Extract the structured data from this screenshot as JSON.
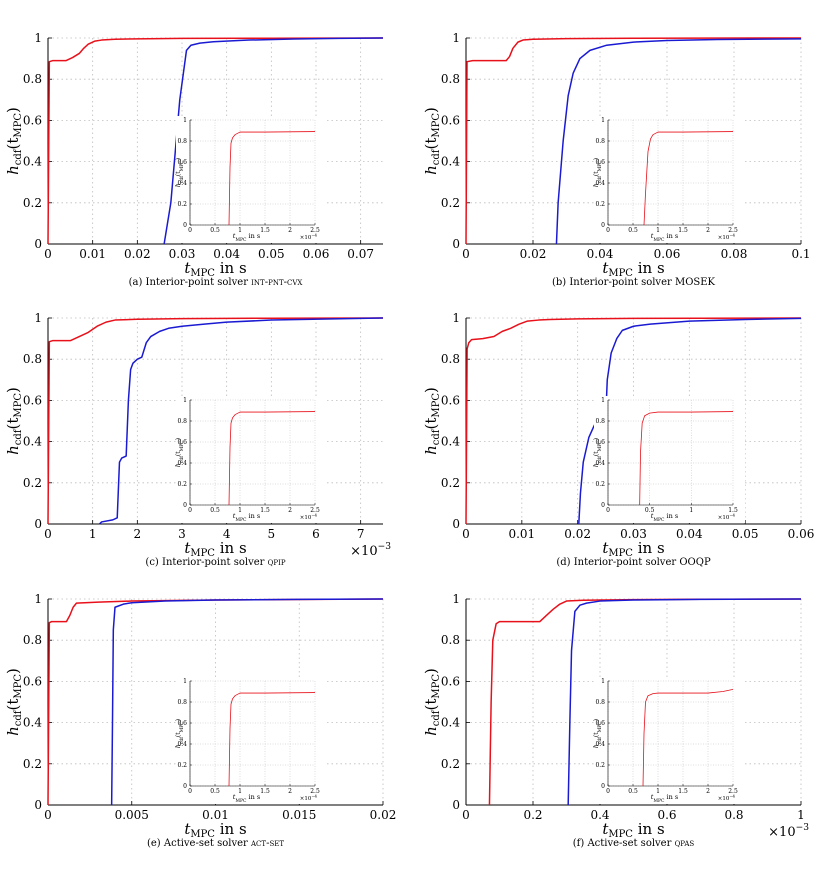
{
  "colors": {
    "red": "#e8101a",
    "blue": "#1a1ad2",
    "grid": "#bdbdbd"
  },
  "labels": {
    "ylabel_main": "h",
    "ylabel_sub": "cdf",
    "ylabel_arg": "(t",
    "ylabel_argsub": "MPC",
    "ylabel_close": ")",
    "xlabel_main": "t",
    "xlabel_sub": "MPC",
    "xlabel_unit": " in s",
    "exp_base": "×10",
    "exp_neg3": "−3",
    "exp_neg4": "−4"
  },
  "chart_data": [
    {
      "id": "a",
      "type": "line",
      "caption_prefix": "(a) Interior-point solver ",
      "caption_name": "int-pnt-cvx",
      "caption_sc": true,
      "xlim": [
        0,
        0.075
      ],
      "ylim": [
        0,
        1
      ],
      "xticks": [
        0,
        0.01,
        0.02,
        0.03,
        0.04,
        0.05,
        0.06,
        0.07
      ],
      "xticklabels": [
        "0",
        "0.01",
        "0.02",
        "0.03",
        "0.04",
        "0.05",
        "0.06",
        "0.07"
      ],
      "yticks": [
        0,
        0.2,
        0.4,
        0.6,
        0.8,
        1
      ],
      "yticklabels": [
        "0",
        "0.2",
        "0.4",
        "0.6",
        "0.8",
        "1"
      ],
      "exponent": "",
      "series": [
        {
          "color": "red",
          "x": [
            0,
            0.0003,
            0.001,
            0.004,
            0.0055,
            0.007,
            0.008,
            0.009,
            0.0105,
            0.012,
            0.015,
            0.02,
            0.03,
            0.05,
            0.075
          ],
          "y": [
            0,
            0.885,
            0.89,
            0.89,
            0.905,
            0.925,
            0.95,
            0.97,
            0.985,
            0.99,
            0.994,
            0.996,
            0.998,
            0.999,
            1
          ]
        },
        {
          "color": "blue",
          "x": [
            0.026,
            0.0275,
            0.0285,
            0.0295,
            0.031,
            0.032,
            0.034,
            0.037,
            0.045,
            0.055,
            0.065,
            0.075
          ],
          "y": [
            0,
            0.2,
            0.45,
            0.7,
            0.94,
            0.965,
            0.975,
            0.982,
            0.99,
            0.995,
            0.998,
            1
          ]
        }
      ],
      "inset": {
        "xlim": [
          0,
          2.5
        ],
        "ylim": [
          0,
          1
        ],
        "xticks": [
          0,
          0.5,
          1,
          1.5,
          2,
          2.5
        ],
        "xticklabels": [
          "0",
          "0.5",
          "1",
          "1.5",
          "2",
          "2.5"
        ],
        "yticks": [
          0,
          0.2,
          0.4,
          0.6,
          0.8,
          1
        ],
        "yticklabels": [
          "0",
          "0.2",
          "0.4",
          "0.6",
          "0.8",
          "1"
        ],
        "exponent": "−4",
        "series": [
          {
            "color": "red",
            "x": [
              0.78,
              0.8,
              0.82,
              0.85,
              0.9,
              1.0,
              1.5,
              2.5
            ],
            "y": [
              0,
              0.55,
              0.78,
              0.83,
              0.86,
              0.885,
              0.885,
              0.89
            ]
          }
        ]
      }
    },
    {
      "id": "b",
      "type": "line",
      "caption_prefix": "(b) Interior-point solver ",
      "caption_name": "MOSEK",
      "caption_sc": false,
      "xlim": [
        0,
        0.1
      ],
      "ylim": [
        0,
        1
      ],
      "xticks": [
        0,
        0.02,
        0.04,
        0.06,
        0.08,
        0.1
      ],
      "xticklabels": [
        "0",
        "0.02",
        "0.04",
        "0.06",
        "0.08",
        "0.1"
      ],
      "yticks": [
        0,
        0.2,
        0.4,
        0.6,
        0.8,
        1
      ],
      "yticklabels": [
        "0",
        "0.2",
        "0.4",
        "0.6",
        "0.8",
        "1"
      ],
      "exponent": "",
      "series": [
        {
          "color": "red",
          "x": [
            0,
            0.0003,
            0.002,
            0.012,
            0.013,
            0.014,
            0.0155,
            0.017,
            0.02,
            0.03,
            0.05,
            0.1
          ],
          "y": [
            0,
            0.885,
            0.89,
            0.89,
            0.91,
            0.95,
            0.98,
            0.99,
            0.994,
            0.997,
            0.999,
            1
          ]
        },
        {
          "color": "blue",
          "x": [
            0.027,
            0.0275,
            0.029,
            0.0305,
            0.032,
            0.034,
            0.037,
            0.042,
            0.05,
            0.06,
            0.075,
            0.1
          ],
          "y": [
            0,
            0.2,
            0.5,
            0.72,
            0.83,
            0.9,
            0.94,
            0.965,
            0.98,
            0.988,
            0.993,
            0.996
          ]
        }
      ],
      "inset": {
        "xlim": [
          0,
          2.5
        ],
        "ylim": [
          0,
          1
        ],
        "xticks": [
          0,
          0.5,
          1,
          1.5,
          2,
          2.5
        ],
        "xticklabels": [
          "0",
          "0.5",
          "1",
          "1.5",
          "2",
          "2.5"
        ],
        "yticks": [
          0,
          0.2,
          0.4,
          0.6,
          0.8,
          1
        ],
        "yticklabels": [
          "0",
          "0.2",
          "0.4",
          "0.6",
          "0.8",
          "1"
        ],
        "exponent": "−4",
        "series": [
          {
            "color": "red",
            "x": [
              0.72,
              0.75,
              0.8,
              0.85,
              0.9,
              1.0,
              1.5,
              2.5
            ],
            "y": [
              0,
              0.3,
              0.7,
              0.82,
              0.86,
              0.885,
              0.885,
              0.89
            ]
          }
        ]
      }
    },
    {
      "id": "c",
      "type": "line",
      "caption_prefix": "(c) Interior-point solver ",
      "caption_name": "qpip",
      "caption_sc": true,
      "xlim": [
        0,
        7.5
      ],
      "ylim": [
        0,
        1
      ],
      "xticks": [
        0,
        1,
        2,
        3,
        4,
        5,
        6,
        7
      ],
      "xticklabels": [
        "0",
        "1",
        "2",
        "3",
        "4",
        "5",
        "6",
        "7"
      ],
      "yticks": [
        0,
        0.2,
        0.4,
        0.6,
        0.8,
        1
      ],
      "yticklabels": [
        "0",
        "0.2",
        "0.4",
        "0.6",
        "0.8",
        "1"
      ],
      "exponent": "−3",
      "series": [
        {
          "color": "red",
          "x": [
            0,
            0.03,
            0.1,
            0.5,
            0.7,
            0.9,
            1.1,
            1.3,
            1.5,
            2.0,
            3.0,
            5.0,
            7.5
          ],
          "y": [
            0,
            0.885,
            0.89,
            0.89,
            0.91,
            0.93,
            0.96,
            0.98,
            0.99,
            0.994,
            0.997,
            0.999,
            1
          ]
        },
        {
          "color": "blue",
          "x": [
            1.15,
            1.2,
            1.45,
            1.55,
            1.6,
            1.65,
            1.75,
            1.8,
            1.85,
            1.9,
            2.0,
            2.1,
            2.2,
            2.3,
            2.5,
            2.7,
            3.0,
            3.5,
            4.0,
            5.0,
            7.5
          ],
          "y": [
            0,
            0.01,
            0.02,
            0.03,
            0.3,
            0.32,
            0.33,
            0.6,
            0.75,
            0.78,
            0.8,
            0.81,
            0.88,
            0.91,
            0.935,
            0.95,
            0.96,
            0.97,
            0.98,
            0.99,
            1
          ]
        }
      ],
      "inset": {
        "xlim": [
          0,
          2.5
        ],
        "ylim": [
          0,
          1
        ],
        "xticks": [
          0,
          0.5,
          1,
          1.5,
          2,
          2.5
        ],
        "xticklabels": [
          "0",
          "0.5",
          "1",
          "1.5",
          "2",
          "2.5"
        ],
        "yticks": [
          0,
          0.2,
          0.4,
          0.6,
          0.8,
          1
        ],
        "yticklabels": [
          "0",
          "0.2",
          "0.4",
          "0.6",
          "0.8",
          "1"
        ],
        "exponent": "−4",
        "series": [
          {
            "color": "red",
            "x": [
              0.78,
              0.8,
              0.82,
              0.85,
              0.9,
              1.0,
              1.5,
              2.5
            ],
            "y": [
              0,
              0.55,
              0.78,
              0.83,
              0.86,
              0.885,
              0.885,
              0.89
            ]
          }
        ]
      }
    },
    {
      "id": "d",
      "type": "line",
      "caption_prefix": "(d) Interior-point solver ",
      "caption_name": "OOQP",
      "caption_sc": false,
      "xlim": [
        0,
        0.06
      ],
      "ylim": [
        0,
        1
      ],
      "xticks": [
        0,
        0.01,
        0.02,
        0.03,
        0.04,
        0.05,
        0.06
      ],
      "xticklabels": [
        "0",
        "0.01",
        "0.02",
        "0.03",
        "0.04",
        "0.05",
        "0.06"
      ],
      "yticks": [
        0,
        0.2,
        0.4,
        0.6,
        0.8,
        1
      ],
      "yticklabels": [
        "0",
        "0.2",
        "0.4",
        "0.6",
        "0.8",
        "1"
      ],
      "exponent": "",
      "series": [
        {
          "color": "red",
          "x": [
            0,
            0.0002,
            0.0005,
            0.001,
            0.003,
            0.005,
            0.0065,
            0.008,
            0.0095,
            0.011,
            0.013,
            0.015,
            0.02,
            0.03,
            0.06
          ],
          "y": [
            0,
            0.85,
            0.88,
            0.895,
            0.9,
            0.91,
            0.935,
            0.95,
            0.97,
            0.985,
            0.99,
            0.993,
            0.996,
            0.998,
            1
          ]
        },
        {
          "color": "blue",
          "x": [
            0.0202,
            0.0205,
            0.021,
            0.022,
            0.023,
            0.024,
            0.025,
            0.0253,
            0.026,
            0.027,
            0.028,
            0.03,
            0.033,
            0.04,
            0.05,
            0.06
          ],
          "y": [
            0,
            0.15,
            0.3,
            0.42,
            0.48,
            0.49,
            0.5,
            0.7,
            0.83,
            0.9,
            0.94,
            0.96,
            0.97,
            0.985,
            0.993,
            0.998
          ]
        }
      ],
      "inset": {
        "xlim": [
          0,
          1.5
        ],
        "ylim": [
          0,
          1
        ],
        "xticks": [
          0,
          0.5,
          1,
          1.5
        ],
        "xticklabels": [
          "0",
          "0.5",
          "1",
          "1.5"
        ],
        "yticks": [
          0,
          0.2,
          0.4,
          0.6,
          0.8,
          1
        ],
        "yticklabels": [
          "0",
          "0.2",
          "0.4",
          "0.6",
          "0.8",
          "1"
        ],
        "exponent": "−4",
        "series": [
          {
            "color": "red",
            "x": [
              0.38,
              0.39,
              0.41,
              0.44,
              0.5,
              0.6,
              1.0,
              1.5
            ],
            "y": [
              0,
              0.5,
              0.78,
              0.85,
              0.875,
              0.885,
              0.885,
              0.89
            ]
          }
        ]
      }
    },
    {
      "id": "e",
      "type": "line",
      "caption_prefix": "(e) Active-set solver ",
      "caption_name": "act-set",
      "caption_sc": true,
      "xlim": [
        0,
        0.02
      ],
      "ylim": [
        0,
        1
      ],
      "xticks": [
        0,
        0.005,
        0.01,
        0.015,
        0.02
      ],
      "xticklabels": [
        "0",
        "0.005",
        "0.01",
        "0.015",
        "0.02"
      ],
      "yticks": [
        0,
        0.2,
        0.4,
        0.6,
        0.8,
        1
      ],
      "yticklabels": [
        "0",
        "0.2",
        "0.4",
        "0.6",
        "0.8",
        "1"
      ],
      "exponent": "",
      "series": [
        {
          "color": "red",
          "x": [
            0,
            8e-05,
            0.0002,
            0.0011,
            0.0013,
            0.0015,
            0.0017,
            0.003,
            0.005,
            0.01,
            0.02
          ],
          "y": [
            0,
            0.885,
            0.89,
            0.89,
            0.92,
            0.96,
            0.98,
            0.985,
            0.99,
            0.995,
            1
          ]
        },
        {
          "color": "blue",
          "x": [
            0.0038,
            0.00385,
            0.0039,
            0.004,
            0.0045,
            0.005,
            0.007,
            0.01,
            0.015,
            0.02
          ],
          "y": [
            0,
            0.4,
            0.85,
            0.96,
            0.975,
            0.982,
            0.99,
            0.995,
            0.998,
            1
          ]
        }
      ],
      "inset": {
        "xlim": [
          0,
          2.5
        ],
        "ylim": [
          0,
          1
        ],
        "xticks": [
          0,
          0.5,
          1,
          1.5,
          2,
          2.5
        ],
        "xticklabels": [
          "0",
          "0.5",
          "1",
          "1.5",
          "2",
          "2.5"
        ],
        "yticks": [
          0,
          0.2,
          0.4,
          0.6,
          0.8,
          1
        ],
        "yticklabels": [
          "0",
          "0.2",
          "0.4",
          "0.6",
          "0.8",
          "1"
        ],
        "exponent": "−4",
        "series": [
          {
            "color": "red",
            "x": [
              0.78,
              0.8,
              0.82,
              0.85,
              0.9,
              1.0,
              1.5,
              2.5
            ],
            "y": [
              0,
              0.55,
              0.78,
              0.83,
              0.86,
              0.885,
              0.885,
              0.89
            ]
          }
        ]
      }
    },
    {
      "id": "f",
      "type": "line",
      "caption_prefix": "(f) Active-set solver ",
      "caption_name": "qpas",
      "caption_sc": true,
      "xlim": [
        0,
        1
      ],
      "ylim": [
        0,
        1
      ],
      "xticks": [
        0,
        0.2,
        0.4,
        0.6,
        0.8,
        1
      ],
      "xticklabels": [
        "0",
        "0.2",
        "0.4",
        "0.6",
        "0.8",
        "1"
      ],
      "yticks": [
        0,
        0.2,
        0.4,
        0.6,
        0.8,
        1
      ],
      "yticklabels": [
        "0",
        "0.2",
        "0.4",
        "0.6",
        "0.8",
        "1"
      ],
      "exponent": "−3",
      "series": [
        {
          "color": "red",
          "x": [
            0.07,
            0.075,
            0.08,
            0.09,
            0.1,
            0.22,
            0.24,
            0.26,
            0.28,
            0.3,
            0.35,
            0.5,
            0.7,
            1.0
          ],
          "y": [
            0,
            0.5,
            0.8,
            0.88,
            0.89,
            0.89,
            0.92,
            0.95,
            0.975,
            0.99,
            0.994,
            0.997,
            0.999,
            1
          ]
        },
        {
          "color": "blue",
          "x": [
            0.305,
            0.31,
            0.315,
            0.325,
            0.34,
            0.36,
            0.4,
            0.5,
            0.7,
            1.0
          ],
          "y": [
            0,
            0.4,
            0.75,
            0.94,
            0.97,
            0.98,
            0.99,
            0.995,
            0.998,
            1
          ]
        }
      ],
      "inset": {
        "xlim": [
          0,
          2.5
        ],
        "ylim": [
          0,
          1
        ],
        "xticks": [
          0,
          0.5,
          1,
          1.5,
          2,
          2.5
        ],
        "xticklabels": [
          "0",
          "0.5",
          "1",
          "1.5",
          "2",
          "2.5"
        ],
        "yticks": [
          0,
          0.2,
          0.4,
          0.6,
          0.8,
          1
        ],
        "yticklabels": [
          "0",
          "0.2",
          "0.4",
          "0.6",
          "0.8",
          "1"
        ],
        "exponent": "−4",
        "series": [
          {
            "color": "red",
            "x": [
              0.7,
              0.72,
              0.75,
              0.8,
              0.9,
              1.0,
              2.0,
              2.3,
              2.5
            ],
            "y": [
              0,
              0.5,
              0.8,
              0.86,
              0.88,
              0.885,
              0.885,
              0.9,
              0.92
            ]
          }
        ]
      }
    }
  ]
}
